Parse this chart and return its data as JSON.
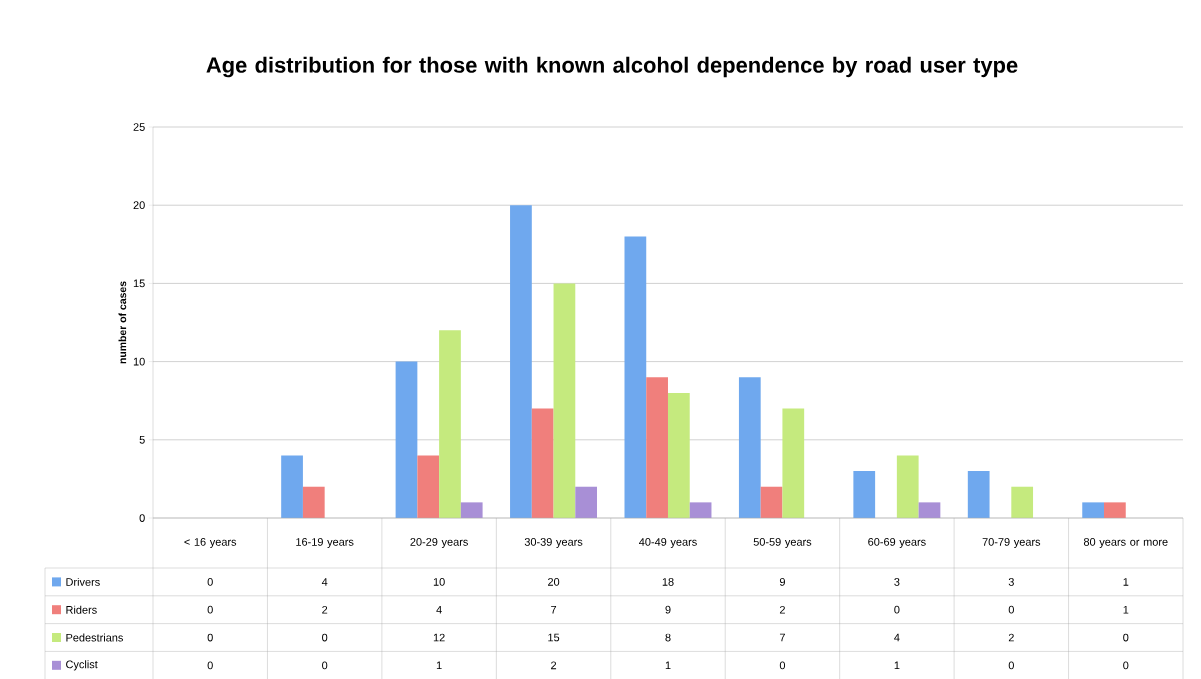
{
  "chart_data": {
    "type": "bar",
    "title": "Age distribution for those with known alcohol dependence by road user type",
    "ylabel": "number of cases",
    "categories": [
      "< 16 years",
      "16-19 years",
      "20-29 years",
      "30-39 years",
      "40-49 years",
      "50-59 years",
      "60-69 years",
      "70-79 years",
      "80 years or more"
    ],
    "series": [
      {
        "name": "Drivers",
        "color": "#6fa8ee",
        "values": [
          0,
          4,
          10,
          20,
          18,
          9,
          3,
          3,
          1
        ]
      },
      {
        "name": "Riders",
        "color": "#f07f7c",
        "values": [
          0,
          2,
          4,
          7,
          9,
          2,
          0,
          0,
          1
        ]
      },
      {
        "name": "Pedestrians",
        "color": "#c5ea7e",
        "values": [
          0,
          0,
          12,
          15,
          8,
          7,
          4,
          2,
          0
        ]
      },
      {
        "name": "Cyclist",
        "color": "#a88fd6",
        "values": [
          0,
          0,
          1,
          2,
          1,
          0,
          1,
          0,
          0
        ]
      }
    ],
    "ylim": [
      0,
      25
    ],
    "yticks": [
      0,
      5,
      10,
      15,
      20,
      25
    ],
    "grid": "y",
    "legend": "bottom",
    "data_labels": true
  }
}
